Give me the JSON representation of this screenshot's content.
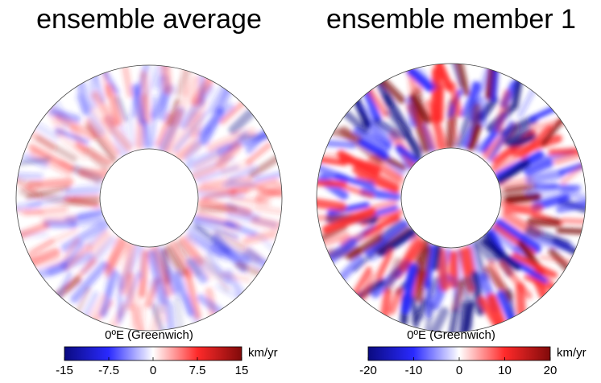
{
  "chart_data": [
    {
      "type": "annulus",
      "title": "ensemble average",
      "xlabel": "0ºE (Greenwich)",
      "colorbar_label": "km/yr",
      "clim": [
        -15,
        15
      ],
      "cticks": [
        -15,
        -7.5,
        0,
        7.5,
        15
      ],
      "colormap": [
        "#0a0a80",
        "#2a2aff",
        "#ffffff",
        "#ff2a2a",
        "#800a0a"
      ]
    },
    {
      "type": "annulus",
      "title": "ensemble member 1",
      "xlabel": "0ºE (Greenwich)",
      "colorbar_label": "km/yr",
      "clim": [
        -20,
        20
      ],
      "cticks": [
        -20,
        -10,
        0,
        10,
        20
      ],
      "colormap": [
        "#0a0a80",
        "#2a2aff",
        "#ffffff",
        "#ff2a2a",
        "#800a0a"
      ]
    }
  ]
}
